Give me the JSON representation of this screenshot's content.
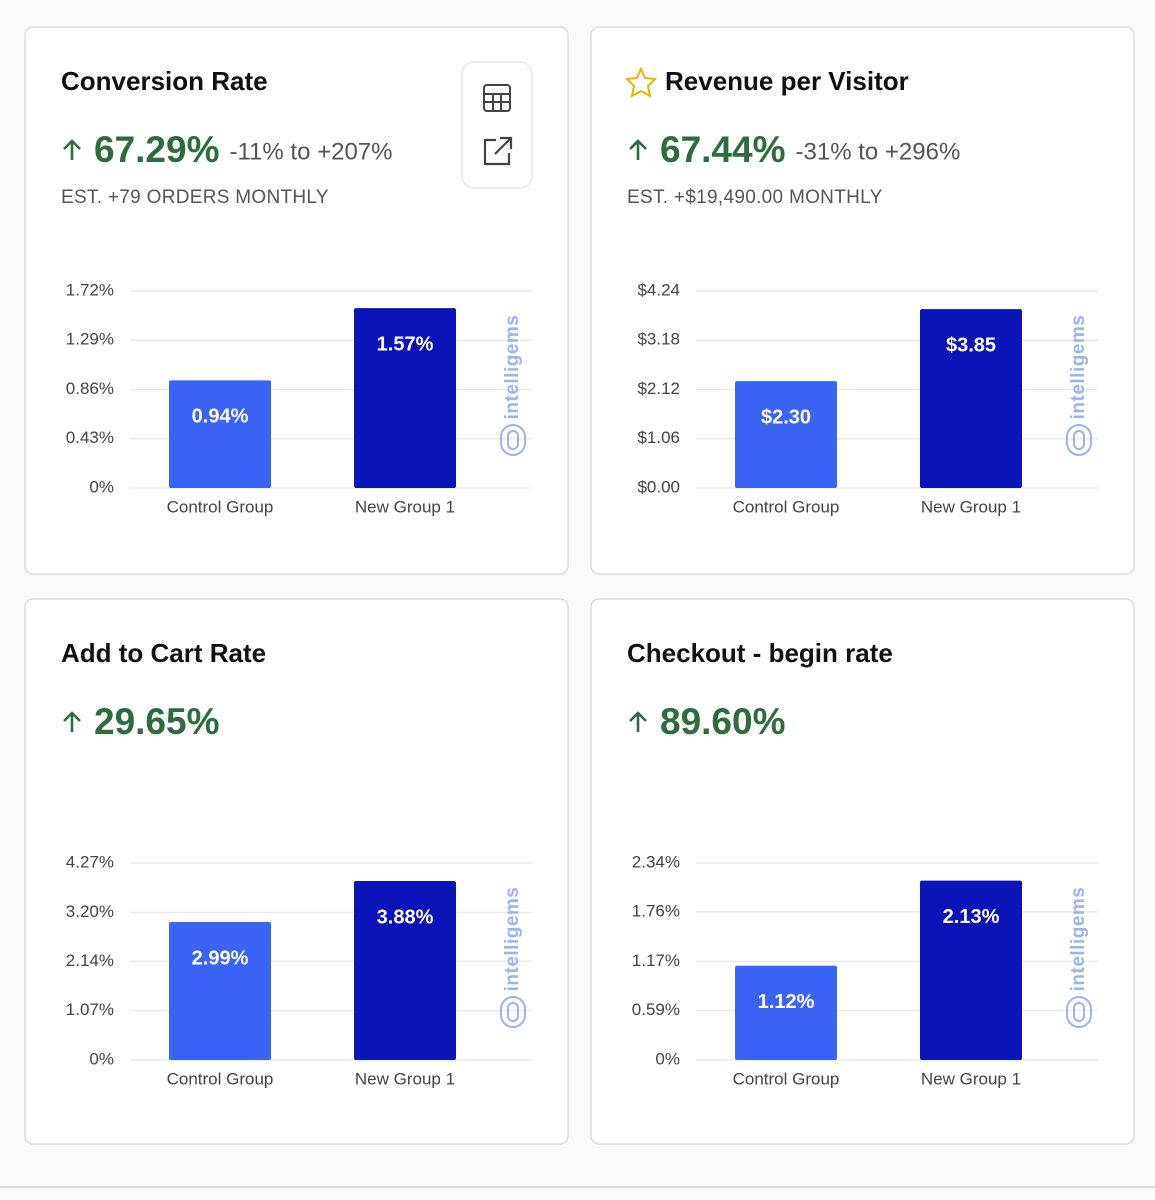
{
  "watermark": "intelligems",
  "chart_data": [
    {
      "type": "bar",
      "title": "Conversion Rate",
      "lift": "67.29%",
      "range": "-11% to +207%",
      "estimate": "EST. +79 ORDERS MONTHLY",
      "categories": [
        "Control Group",
        "New Group 1"
      ],
      "values": [
        0.94,
        1.57
      ],
      "value_labels": [
        "0.94%",
        "1.57%"
      ],
      "colors": [
        "#3a64f5",
        "#0a14b8"
      ],
      "ylim": [
        0,
        1.72
      ],
      "yticks": [
        {
          "value": 0,
          "label": "0%"
        },
        {
          "value": 0.43,
          "label": "0.43%"
        },
        {
          "value": 0.86,
          "label": "0.86%"
        },
        {
          "value": 1.29,
          "label": "1.29%"
        },
        {
          "value": 1.72,
          "label": "1.72%"
        }
      ],
      "grid": true
    },
    {
      "type": "bar",
      "title": "Revenue per Visitor",
      "lift": "67.44%",
      "range": "-31% to +296%",
      "estimate": "EST. +$19,490.00 MONTHLY",
      "categories": [
        "Control Group",
        "New Group 1"
      ],
      "values": [
        2.3,
        3.85
      ],
      "value_labels": [
        "$2.30",
        "$3.85"
      ],
      "colors": [
        "#3a64f5",
        "#0a14b8"
      ],
      "ylim": [
        0,
        4.24
      ],
      "yticks": [
        {
          "value": 0,
          "label": "$0.00"
        },
        {
          "value": 1.06,
          "label": "$1.06"
        },
        {
          "value": 2.12,
          "label": "$2.12"
        },
        {
          "value": 3.18,
          "label": "$3.18"
        },
        {
          "value": 4.24,
          "label": "$4.24"
        }
      ],
      "grid": true
    },
    {
      "type": "bar",
      "title": "Add to Cart Rate",
      "lift": "29.65%",
      "categories": [
        "Control Group",
        "New Group 1"
      ],
      "values": [
        2.99,
        3.88
      ],
      "value_labels": [
        "2.99%",
        "3.88%"
      ],
      "colors": [
        "#3a64f5",
        "#0a14b8"
      ],
      "ylim": [
        0,
        4.27
      ],
      "yticks": [
        {
          "value": 0,
          "label": "0%"
        },
        {
          "value": 1.07,
          "label": "1.07%"
        },
        {
          "value": 2.14,
          "label": "2.14%"
        },
        {
          "value": 3.2,
          "label": "3.20%"
        },
        {
          "value": 4.27,
          "label": "4.27%"
        }
      ],
      "grid": true
    },
    {
      "type": "bar",
      "title": "Checkout - begin rate",
      "lift": "89.60%",
      "categories": [
        "Control Group",
        "New Group 1"
      ],
      "values": [
        1.12,
        2.13
      ],
      "value_labels": [
        "1.12%",
        "2.13%"
      ],
      "colors": [
        "#3a64f5",
        "#0a14b8"
      ],
      "ylim": [
        0,
        2.34
      ],
      "yticks": [
        {
          "value": 0,
          "label": "0%"
        },
        {
          "value": 0.59,
          "label": "0.59%"
        },
        {
          "value": 1.17,
          "label": "1.17%"
        },
        {
          "value": 1.76,
          "label": "1.76%"
        },
        {
          "value": 2.34,
          "label": "2.34%"
        }
      ],
      "grid": true
    }
  ]
}
